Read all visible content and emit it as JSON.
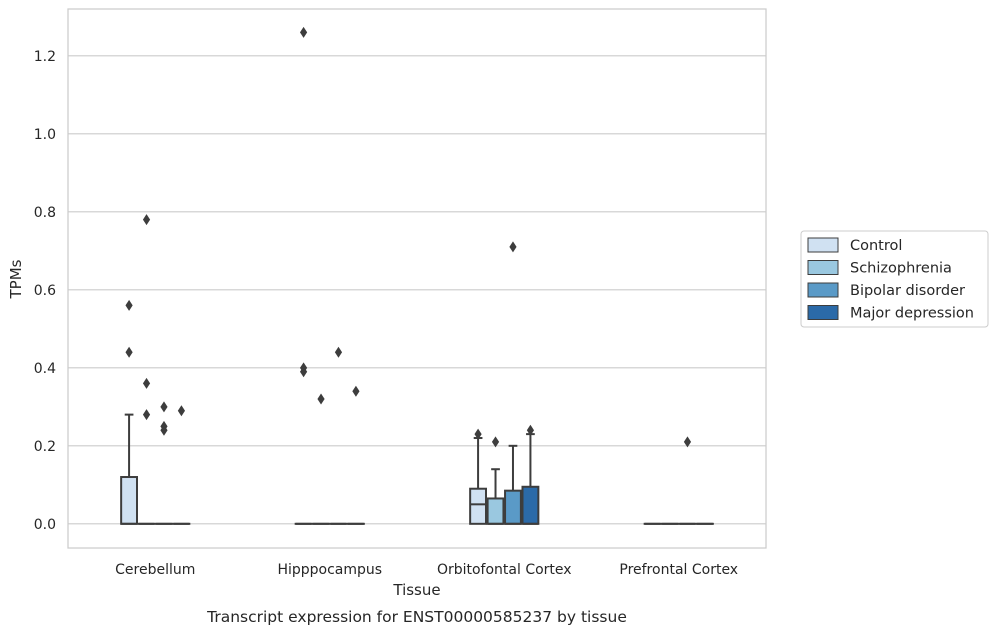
{
  "chart_data": {
    "type": "box",
    "xlabel": "Tissue",
    "ylabel": "TPMs",
    "caption": "Transcript expression for ENST00000585237 by tissue",
    "ylim": [
      -0.062,
      1.32
    ],
    "yticks": [
      "0.0",
      "0.2",
      "0.4",
      "0.6",
      "0.8",
      "1.0",
      "1.2"
    ],
    "ytick_values": [
      0,
      0.2,
      0.4,
      0.6,
      0.8,
      1.0,
      1.2
    ],
    "grid": "horizontal",
    "legend_placement": "right",
    "categories": [
      "Cerebellum",
      "Hipppocampus",
      "Orbitofontal Cortex",
      "Prefrontal Cortex"
    ],
    "series": [
      {
        "name": "Control",
        "color": "#d0e1f2",
        "boxes": [
          {
            "q1": 0,
            "median": 0,
            "q3": 0.12,
            "whislo": 0,
            "whishi": 0.28,
            "fliers": [
              0.56,
              0.44
            ]
          },
          {
            "q1": 0,
            "median": 0,
            "q3": 0,
            "whislo": 0,
            "whishi": 0,
            "fliers": [
              1.26,
              0.4,
              0.39
            ]
          },
          {
            "q1": 0,
            "median": 0.05,
            "q3": 0.09,
            "whislo": 0,
            "whishi": 0.22,
            "fliers": [
              0.23
            ]
          },
          {
            "q1": 0,
            "median": 0,
            "q3": 0,
            "whislo": 0,
            "whishi": 0,
            "fliers": []
          }
        ]
      },
      {
        "name": "Schizophrenia",
        "color": "#9ac8e0",
        "boxes": [
          {
            "q1": 0,
            "median": 0,
            "q3": 0,
            "whislo": 0,
            "whishi": 0,
            "fliers": [
              0.78,
              0.36,
              0.28
            ]
          },
          {
            "q1": 0,
            "median": 0,
            "q3": 0,
            "whislo": 0,
            "whishi": 0,
            "fliers": [
              0.32
            ]
          },
          {
            "q1": 0,
            "median": 0,
            "q3": 0.065,
            "whislo": 0,
            "whishi": 0.14,
            "fliers": [
              0.21
            ]
          },
          {
            "q1": 0,
            "median": 0,
            "q3": 0,
            "whislo": 0,
            "whishi": 0,
            "fliers": []
          }
        ]
      },
      {
        "name": "Bipolar disorder",
        "color": "#5a9ac7",
        "boxes": [
          {
            "q1": 0,
            "median": 0,
            "q3": 0,
            "whislo": 0,
            "whishi": 0,
            "fliers": [
              0.3,
              0.25,
              0.24
            ]
          },
          {
            "q1": 0,
            "median": 0,
            "q3": 0,
            "whislo": 0,
            "whishi": 0,
            "fliers": [
              0.44
            ]
          },
          {
            "q1": 0,
            "median": 0,
            "q3": 0.085,
            "whislo": 0,
            "whishi": 0.2,
            "fliers": [
              0.71
            ]
          },
          {
            "q1": 0,
            "median": 0,
            "q3": 0,
            "whislo": 0,
            "whishi": 0,
            "fliers": [
              0.21
            ]
          }
        ]
      },
      {
        "name": "Major depression",
        "color": "#2b6aa8",
        "boxes": [
          {
            "q1": 0,
            "median": 0,
            "q3": 0,
            "whislo": 0,
            "whishi": 0,
            "fliers": [
              0.29
            ]
          },
          {
            "q1": 0,
            "median": 0,
            "q3": 0,
            "whislo": 0,
            "whishi": 0,
            "fliers": [
              0.34
            ]
          },
          {
            "q1": 0,
            "median": 0,
            "q3": 0.095,
            "whislo": 0,
            "whishi": 0.23,
            "fliers": [
              0.24
            ]
          },
          {
            "q1": 0,
            "median": 0,
            "q3": 0,
            "whislo": 0,
            "whishi": 0,
            "fliers": []
          }
        ]
      }
    ]
  }
}
